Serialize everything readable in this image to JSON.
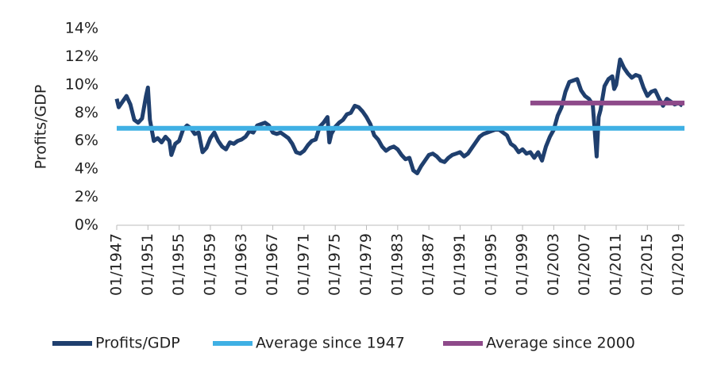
{
  "chart_data": {
    "type": "line",
    "ylabel": "Profits/GDP",
    "xlim": [
      1947,
      2019.75
    ],
    "xticks": [
      {
        "value": 1947,
        "label": "01/1947"
      },
      {
        "value": 1951,
        "label": "01/1951"
      },
      {
        "value": 1955,
        "label": "01/1955"
      },
      {
        "value": 1959,
        "label": "01/1959"
      },
      {
        "value": 1963,
        "label": "01/1963"
      },
      {
        "value": 1967,
        "label": "01/1967"
      },
      {
        "value": 1971,
        "label": "01/1971"
      },
      {
        "value": 1975,
        "label": "01/1975"
      },
      {
        "value": 1979,
        "label": "01/1979"
      },
      {
        "value": 1983,
        "label": "01/1983"
      },
      {
        "value": 1987,
        "label": "01/1987"
      },
      {
        "value": 1991,
        "label": "01/1991"
      },
      {
        "value": 1995,
        "label": "01/1995"
      },
      {
        "value": 1999,
        "label": "01/1999"
      },
      {
        "value": 2003,
        "label": "01/2003"
      },
      {
        "value": 2007,
        "label": "01/2007"
      },
      {
        "value": 2011,
        "label": "01/2011"
      },
      {
        "value": 2015,
        "label": "01/2015"
      },
      {
        "value": 2019,
        "label": "01/2019"
      }
    ],
    "ylim": [
      0,
      14
    ],
    "yticks": [
      {
        "value": 0,
        "label": "0%"
      },
      {
        "value": 2,
        "label": "2%"
      },
      {
        "value": 4,
        "label": "4%"
      },
      {
        "value": 6,
        "label": "6%"
      },
      {
        "value": 8,
        "label": "8%"
      },
      {
        "value": 10,
        "label": "10%"
      },
      {
        "value": 12,
        "label": "12%"
      },
      {
        "value": 14,
        "label": "14%"
      }
    ],
    "legend": "bottom",
    "series": [
      {
        "name": "Profits/GDP",
        "color": "#1f3f6e",
        "x": [
          1947,
          1947.25,
          1947.75,
          1948.25,
          1948.75,
          1949.25,
          1949.75,
          1950.25,
          1950.75,
          1951,
          1951.25,
          1951.75,
          1952.25,
          1952.75,
          1953.25,
          1953.75,
          1954,
          1954.5,
          1955,
          1955.5,
          1956,
          1956.5,
          1957,
          1957.5,
          1958,
          1958.5,
          1959,
          1959.5,
          1960,
          1960.5,
          1961,
          1961.5,
          1962,
          1962.5,
          1963,
          1963.5,
          1964,
          1964.5,
          1965,
          1965.5,
          1966,
          1966.5,
          1967,
          1967.5,
          1968,
          1968.5,
          1969,
          1969.5,
          1970,
          1970.5,
          1971,
          1971.5,
          1972,
          1972.5,
          1973,
          1973.5,
          1974,
          1974.25,
          1974.5,
          1975,
          1975.5,
          1976,
          1976.5,
          1977,
          1977.5,
          1978,
          1978.5,
          1979,
          1979.5,
          1980,
          1980.5,
          1981,
          1981.5,
          1982,
          1982.5,
          1983,
          1983.5,
          1984,
          1984.5,
          1985,
          1985.5,
          1986,
          1986.5,
          1987,
          1987.5,
          1988,
          1988.5,
          1989,
          1989.5,
          1990,
          1990.5,
          1991,
          1991.5,
          1992,
          1992.5,
          1993,
          1993.5,
          1994,
          1994.5,
          1995,
          1995.5,
          1996,
          1996.5,
          1997,
          1997.5,
          1998,
          1998.5,
          1999,
          1999.5,
          2000,
          2000.5,
          2001,
          2001.5,
          2002,
          2002.5,
          2003,
          2003.5,
          2004,
          2004.5,
          2005,
          2005.5,
          2006,
          2006.5,
          2007,
          2007.5,
          2008,
          2008.5,
          2008.75,
          2009,
          2009.5,
          2010,
          2010.5,
          2010.75,
          2011,
          2011.5,
          2012,
          2012.5,
          2013,
          2013.5,
          2014,
          2014.5,
          2015,
          2015.5,
          2016,
          2016.5,
          2017,
          2017.5,
          2018,
          2018.5,
          2019,
          2019.5
        ],
        "values": [
          9.0,
          8.4,
          8.8,
          9.2,
          8.6,
          7.5,
          7.3,
          7.6,
          9.2,
          9.8,
          7.5,
          6.0,
          6.2,
          5.9,
          6.3,
          6.0,
          5.0,
          5.8,
          6.0,
          6.8,
          7.1,
          6.9,
          6.5,
          6.6,
          5.2,
          5.5,
          6.2,
          6.6,
          6.0,
          5.6,
          5.4,
          5.9,
          5.8,
          6.0,
          6.1,
          6.3,
          6.7,
          6.6,
          7.1,
          7.2,
          7.3,
          7.1,
          6.6,
          6.5,
          6.6,
          6.4,
          6.2,
          5.8,
          5.2,
          5.1,
          5.3,
          5.7,
          6.0,
          6.1,
          7.0,
          7.3,
          7.7,
          5.9,
          6.5,
          7.0,
          7.3,
          7.5,
          7.9,
          8.0,
          8.5,
          8.4,
          8.1,
          7.7,
          7.2,
          6.4,
          6.1,
          5.6,
          5.3,
          5.5,
          5.6,
          5.4,
          5.0,
          4.7,
          4.8,
          3.9,
          3.7,
          4.2,
          4.6,
          5.0,
          5.1,
          4.9,
          4.6,
          4.5,
          4.8,
          5.0,
          5.1,
          5.2,
          4.9,
          5.1,
          5.5,
          5.9,
          6.3,
          6.5,
          6.6,
          6.7,
          6.8,
          6.8,
          6.6,
          6.4,
          5.8,
          5.6,
          5.2,
          5.4,
          5.1,
          5.2,
          4.8,
          5.2,
          4.6,
          5.6,
          6.3,
          6.8,
          7.8,
          8.4,
          9.5,
          10.2,
          10.3,
          10.4,
          9.6,
          9.2,
          9.0,
          8.6,
          4.9,
          7.7,
          8.2,
          9.9,
          10.4,
          10.6,
          9.7,
          10.0,
          11.8,
          11.2,
          10.8,
          10.5,
          10.7,
          10.6,
          9.8,
          9.2,
          9.5,
          9.6,
          9.0,
          8.5,
          9.0,
          8.8,
          8.6,
          8.7,
          8.5
        ]
      },
      {
        "name": "Average since 1947",
        "color": "#3fb0e4",
        "x": [
          1947,
          2019.75
        ],
        "values": [
          6.9,
          6.9
        ]
      },
      {
        "name": "Average since 2000",
        "color": "#8e4a8a",
        "x": [
          2000,
          2019.75
        ],
        "values": [
          8.7,
          8.7
        ]
      }
    ]
  }
}
